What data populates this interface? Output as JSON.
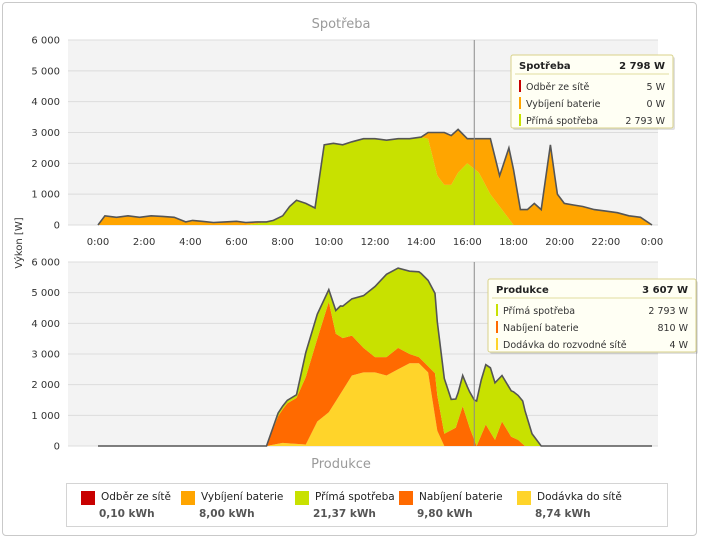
{
  "colors": {
    "grid_odber": "#c80000",
    "vybijeni": "#ffa500",
    "prima": "#c8e100",
    "nabijeni": "#ff6a00",
    "dodavka": "#ffd42a",
    "outline": "#555555",
    "plot_band": "#f3f3f3"
  },
  "y_axis_label": "Výkon [W]",
  "chart_data": [
    {
      "type": "area",
      "title": "Spotřeba",
      "x_ticks": [
        "0:00",
        "2:00",
        "4:00",
        "6:00",
        "8:00",
        "10:00",
        "12:00",
        "14:00",
        "16:00",
        "18:00",
        "20:00",
        "22:00",
        "0:00"
      ],
      "y_ticks": [
        "0",
        "1 000",
        "2 000",
        "3 000",
        "4 000",
        "5 000",
        "6 000"
      ],
      "ylim": [
        0,
        6000
      ],
      "xlim": [
        0,
        24
      ],
      "series": [
        {
          "name": "Odběr ze sítě",
          "color_key": "grid_odber",
          "x": [
            0,
            24
          ],
          "values": [
            0,
            0
          ]
        },
        {
          "name": "Přímá spotřeba",
          "color_key": "prima",
          "x": [
            0,
            6.4,
            6.9,
            7.3,
            7.6,
            8.0,
            8.3,
            8.6,
            9.0,
            9.4,
            9.8,
            10.2,
            10.6,
            11.0,
            11.5,
            12.0,
            12.5,
            13.0,
            13.5,
            14.0,
            14.3,
            14.7,
            15.0,
            15.3,
            15.6,
            16.0,
            16.5,
            17.0,
            17.5,
            18.0,
            18.3,
            18.6,
            19.0,
            19.3,
            19.6,
            19.8,
            20.3,
            20.6,
            21.0,
            21.5,
            24
          ],
          "values": [
            0,
            0,
            50,
            100,
            150,
            300,
            600,
            800,
            700,
            550,
            2600,
            2650,
            2600,
            2700,
            2800,
            2800,
            2750,
            2800,
            2800,
            2850,
            2800,
            1600,
            1300,
            1300,
            1700,
            2000,
            1700,
            1000,
            500,
            0,
            0,
            0,
            0,
            0,
            0,
            0,
            0,
            0,
            0,
            0,
            0
          ]
        },
        {
          "name": "Vybíjení baterie",
          "color_key": "vybijeni",
          "x": [
            0,
            0.3,
            0.8,
            1.3,
            1.8,
            2.3,
            2.8,
            3.3,
            3.8,
            4.1,
            4.5,
            5.0,
            5.5,
            6.0,
            6.4,
            6.9,
            7.3,
            7.6,
            8.0,
            8.3,
            8.6,
            9.0,
            9.4,
            9.8,
            10.2,
            10.6,
            11.0,
            11.5,
            12.0,
            12.5,
            13.0,
            13.5,
            14.0,
            14.3,
            14.7,
            15.0,
            15.3,
            15.6,
            16.0,
            16.5,
            17.0,
            17.4,
            17.8,
            18.0,
            18.3,
            18.6,
            18.9,
            19.2,
            19.6,
            19.9,
            20.2,
            20.6,
            21.0,
            21.5,
            22.0,
            22.5,
            23.0,
            23.5,
            24
          ],
          "values": [
            0,
            300,
            250,
            300,
            250,
            300,
            280,
            250,
            100,
            150,
            120,
            80,
            100,
            120,
            80,
            50,
            0,
            0,
            0,
            0,
            0,
            0,
            0,
            0,
            0,
            0,
            0,
            0,
            0,
            0,
            0,
            0,
            0,
            200,
            1400,
            1700,
            1600,
            1400,
            800,
            1100,
            1800,
            1000,
            2300,
            1800,
            500,
            500,
            700,
            500,
            2600,
            1000,
            700,
            650,
            600,
            500,
            450,
            400,
            300,
            250,
            0
          ],
          "note_unused": ""
        }
      ],
      "hover_x": 16.3,
      "tooltip": {
        "title": "Spotřeba",
        "total": "2 798 W",
        "rows": [
          {
            "label": "Odběr ze sítě",
            "value": "5 W",
            "color_key": "grid_odber"
          },
          {
            "label": "Vybíjení baterie",
            "value": "0 W",
            "color_key": "vybijeni"
          },
          {
            "label": "Přímá spotřeba",
            "value": "2 793 W",
            "color_key": "prima"
          }
        ]
      }
    },
    {
      "type": "area",
      "title": "Produkce",
      "y_ticks": [
        "0",
        "1 000",
        "2 000",
        "3 000",
        "4 000",
        "5 000",
        "6 000"
      ],
      "ylim": [
        0,
        6000
      ],
      "xlim": [
        0,
        24
      ],
      "series": [
        {
          "name": "Dodávka do sítě",
          "color_key": "dodavka",
          "x": [
            0,
            7.3,
            8.0,
            9.0,
            9.5,
            10.0,
            10.5,
            11.0,
            11.5,
            12.0,
            12.5,
            13.0,
            13.5,
            13.9,
            14.3,
            14.7,
            15.0,
            15.5,
            16.0,
            16.5,
            17.0,
            24
          ],
          "values": [
            0,
            0,
            100,
            50,
            800,
            1100,
            1700,
            2300,
            2400,
            2400,
            2300,
            2500,
            2700,
            2700,
            2400,
            500,
            0,
            0,
            0,
            0,
            0,
            0
          ]
        },
        {
          "name": "Nabíjení baterie",
          "color_key": "nabijeni",
          "x": [
            0,
            7.3,
            7.8,
            8.2,
            8.6,
            9.0,
            9.5,
            10.0,
            10.3,
            10.6,
            11.0,
            11.5,
            12.0,
            12.5,
            13.0,
            13.5,
            13.9,
            14.3,
            14.6,
            15.0,
            15.5,
            15.8,
            16.1,
            16.4,
            16.8,
            17.2,
            17.5,
            17.9,
            18.2,
            18.5,
            18.8,
            24
          ],
          "values": [
            0,
            0,
            900,
            1300,
            1500,
            2200,
            2700,
            3600,
            2200,
            1700,
            1300,
            800,
            500,
            600,
            700,
            300,
            200,
            200,
            1400,
            400,
            600,
            1300,
            600,
            0,
            700,
            200,
            800,
            300,
            200,
            0,
            0,
            0
          ]
        },
        {
          "name": "Přímá spotřeba",
          "color_key": "prima",
          "x": [
            0,
            7.3,
            7.8,
            8.2,
            8.6,
            9.0,
            9.5,
            10.0,
            10.5,
            11.0,
            11.5,
            12.0,
            12.5,
            13.0,
            13.5,
            14.0,
            14.3,
            14.6,
            15.0,
            15.3,
            15.6,
            16.0,
            16.3,
            16.6,
            17.0,
            17.5,
            18.0,
            18.4,
            18.8,
            19.2,
            24
          ],
          "values": [
            0,
            0,
            100,
            100,
            100,
            800,
            800,
            400,
            1000,
            1200,
            1700,
            2300,
            2700,
            2600,
            2700,
            2800,
            2800,
            2600,
            1800,
            1000,
            900,
            1100,
            1300,
            1800,
            2100,
            1500,
            1500,
            1400,
            400,
            0,
            0
          ]
        }
      ],
      "hover_x": 16.3,
      "tooltip": {
        "title": "Produkce",
        "total": "3 607 W",
        "rows": [
          {
            "label": "Přímá spotřeba",
            "value": "2 793 W",
            "color_key": "prima"
          },
          {
            "label": "Nabíjení baterie",
            "value": "810 W",
            "color_key": "nabijeni"
          },
          {
            "label": "Dodávka do rozvodné sítě",
            "value": "4 W",
            "color_key": "dodavka"
          }
        ]
      }
    }
  ],
  "legend": [
    {
      "name": "Odběr ze sítě",
      "value": "0,10 kWh",
      "color_key": "grid_odber"
    },
    {
      "name": "Vybíjení baterie",
      "value": "8,00 kWh",
      "color_key": "vybijeni"
    },
    {
      "name": "Přímá spotřeba",
      "value": "21,37 kWh",
      "color_key": "prima"
    },
    {
      "name": "Nabíjení baterie",
      "value": "9,80 kWh",
      "color_key": "nabijeni"
    },
    {
      "name": "Dodávka do sítě",
      "value": "8,74 kWh",
      "color_key": "dodavka"
    }
  ]
}
